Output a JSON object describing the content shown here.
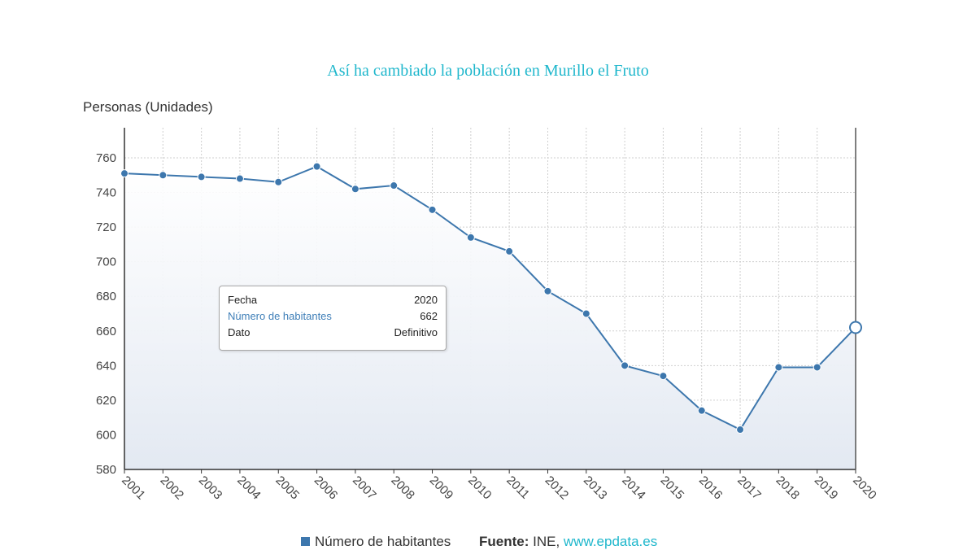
{
  "chart_data": {
    "type": "area",
    "title": "Así ha cambiado la población en Murillo el Fruto",
    "ylabel": "Personas (Unidades)",
    "xlabel": "",
    "categories": [
      "2001",
      "2002",
      "2003",
      "2004",
      "2005",
      "2006",
      "2007",
      "2008",
      "2009",
      "2010",
      "2011",
      "2012",
      "2013",
      "2014",
      "2015",
      "2016",
      "2017",
      "2018",
      "2019",
      "2020"
    ],
    "series": [
      {
        "name": "Número de habitantes",
        "values": [
          751,
          750,
          749,
          748,
          746,
          755,
          742,
          744,
          730,
          714,
          706,
          683,
          670,
          640,
          634,
          614,
          603,
          639,
          639,
          662
        ]
      }
    ],
    "ylim": [
      580,
      770
    ],
    "yticks": [
      580,
      600,
      620,
      640,
      660,
      680,
      700,
      720,
      740,
      760
    ],
    "grid": true,
    "colors": {
      "line": "#3d77ad",
      "marker": "#3d77ad",
      "title": "#1fb7cc",
      "fill_top": "#dfe7f1",
      "fill_bottom": "#f4f6fa"
    }
  },
  "tooltip": {
    "rows": [
      {
        "label": "Fecha",
        "value": "2020"
      },
      {
        "label": "Número de habitantes",
        "value": "662"
      },
      {
        "label": "Dato",
        "value": "Definitivo"
      }
    ]
  },
  "legend": {
    "series_label": "Número de habitantes",
    "source_label": "Fuente:",
    "source_text": " INE, ",
    "source_link": "www.epdata.es"
  }
}
